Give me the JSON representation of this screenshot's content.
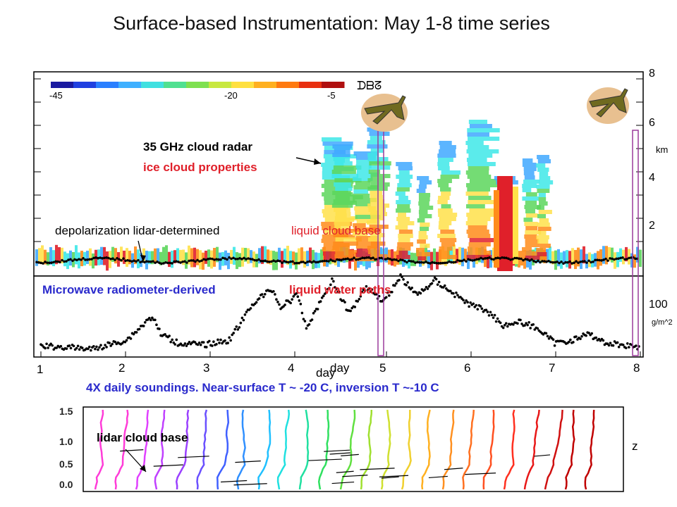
{
  "title": "Surface-based Instrumentation: May 1-8 time series",
  "colorbar": {
    "labels": [
      "-45",
      "-20",
      "-5"
    ]
  },
  "annotations": {
    "radar_line1": "35 GHz cloud radar",
    "radar_line2": "ice cloud properties",
    "lidar_prefix": "depolarization lidar-determined",
    "lidar_suffix": "liquid cloud base",
    "mwr_prefix": "Microwave radiometer-derived",
    "mwr_suffix": "liquid water paths",
    "soundings": "4X daily soundings. Near-surface  T ~ -20 C, inversion T ~-10 C",
    "lidar_cloud_base": "lidar cloud base",
    "z_label": "z",
    "symbols": "ᗪᗷᘔ"
  },
  "right_axis": {
    "height_ticks": [
      "8",
      "6",
      "4",
      "2"
    ],
    "height_unit": "km",
    "lwp_tick": "100",
    "lwp_unit": "g/m^2"
  },
  "x_axis": {
    "label": "day",
    "label2": "day",
    "ticks": [
      "1",
      "2",
      "3",
      "4",
      "5",
      "6",
      "7",
      "8"
    ]
  },
  "sounding_axis": {
    "ticks": [
      "1.5",
      "1.0",
      "0.5",
      "0.0"
    ]
  },
  "colors": {
    "radar_blue": "#3fa8ff",
    "radar_cyan": "#3ee8e8",
    "radar_green": "#5cd65c",
    "radar_yellow": "#ffe14a",
    "radar_orange": "#ff8c1a",
    "radar_red": "#e0202a",
    "annotation_red": "#e0202a",
    "annotation_blue": "#2a2acc",
    "marker_box": "#9b3a9b"
  },
  "chart_data": [
    {
      "type": "heatmap",
      "title": "35 GHz cloud radar",
      "colorbar_ticks": [
        -45,
        -20,
        -5
      ],
      "ylabel": "km",
      "ylim": [
        0,
        9
      ],
      "xlim": [
        1,
        8
      ],
      "y_ticks": [
        2,
        4,
        6,
        8
      ],
      "x_ticks": [
        1,
        2,
        3,
        4,
        5,
        6,
        7,
        8
      ]
    },
    {
      "type": "scatter",
      "title": "Microwave radiometer-derived liquid water paths",
      "ylabel": "g/m^2",
      "y_ticks": [
        100
      ],
      "xlabel": "day",
      "xlim": [
        1,
        8
      ],
      "x": [
        1.0,
        1.3,
        1.6,
        2.0,
        2.3,
        2.4,
        2.6,
        2.9,
        3.2,
        3.5,
        3.7,
        3.8,
        4.0,
        4.1,
        4.4,
        4.6,
        4.8,
        5.0,
        5.2,
        5.4,
        5.6,
        5.8,
        6.0,
        6.2,
        6.4,
        6.6,
        6.8,
        7.0,
        7.2,
        7.4,
        7.6,
        7.8,
        8.0
      ],
      "values": [
        10,
        8,
        5,
        20,
        60,
        30,
        15,
        12,
        20,
        85,
        105,
        75,
        95,
        40,
        120,
        65,
        110,
        85,
        125,
        95,
        120,
        100,
        80,
        70,
        45,
        50,
        40,
        15,
        20,
        30,
        15,
        12,
        8
      ]
    }
  ]
}
